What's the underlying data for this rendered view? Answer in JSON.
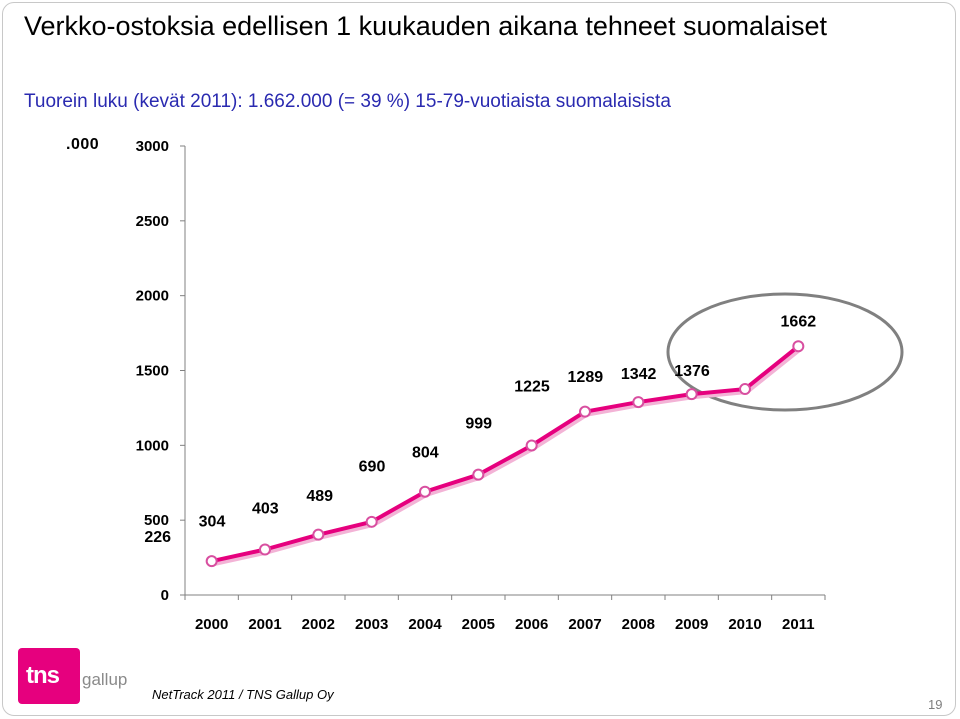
{
  "slide": {
    "title": "Verkko-ostoksia edellisen 1 kuukauden aikana tehneet suomalaiset",
    "subtitle": "Tuorein luku (kevät 2011): 1.662.000 (= 39 %) 15-79-vuotiaista suomalaisista",
    "unit_label": ".000",
    "source": "NetTrack 2011 / TNS Gallup Oy",
    "page_number": "19",
    "logo": {
      "brand": "tns",
      "sub": "gallup"
    }
  },
  "colors": {
    "line": "#e6007e",
    "marker_fill": "#ffffff",
    "marker_stroke": "#d84fa0",
    "highlight_ellipse": "#808080",
    "subtitle": "#2a2ab0",
    "axis": "#808080"
  },
  "chart_data": {
    "type": "line",
    "categories": [
      "2000",
      "2001",
      "2002",
      "2003",
      "2004",
      "2005",
      "2006",
      "2007",
      "2008",
      "2009",
      "2010",
      "2011"
    ],
    "values": [
      226,
      304,
      403,
      489,
      690,
      804,
      999,
      1225,
      1289,
      1342,
      1376,
      1662
    ],
    "ylim": [
      0,
      3000
    ],
    "yticks": [
      "0",
      "500",
      "1000",
      "1500",
      "2000",
      "2500",
      "3000"
    ],
    "data_labels": true,
    "grid": false,
    "highlight": "2010–2011 circled",
    "legend": "none"
  }
}
